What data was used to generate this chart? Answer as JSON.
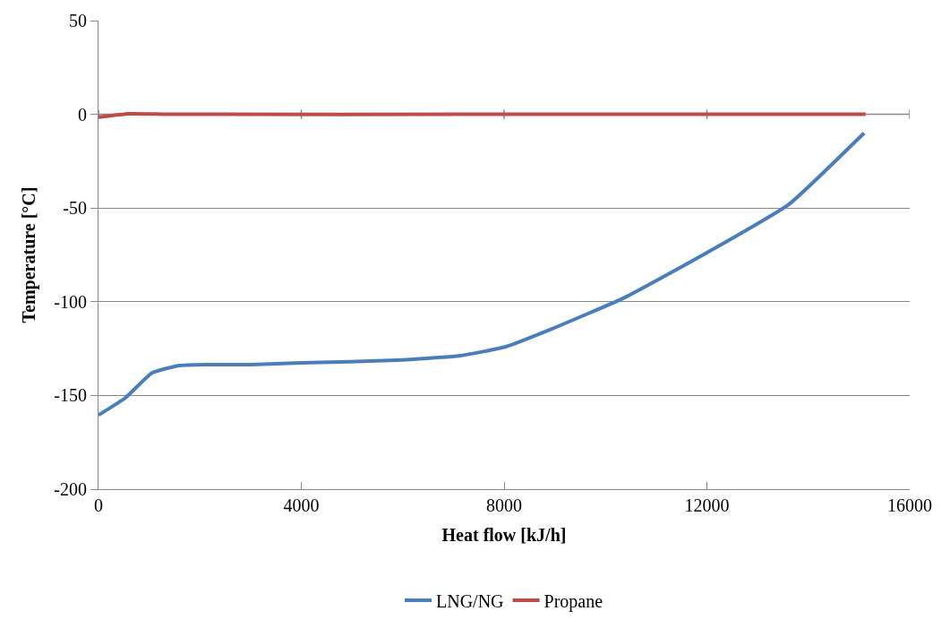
{
  "chart_data": {
    "type": "line",
    "xlabel": "Heat flow [kJ/h]",
    "ylabel": "Temperature [°C]",
    "xlim": [
      0,
      16000
    ],
    "xticks": [
      0,
      4000,
      8000,
      12000,
      16000
    ],
    "ylim": [
      -200,
      50
    ],
    "yticks": [
      -200,
      -150,
      -100,
      -50,
      0,
      50
    ],
    "grid": "y",
    "legend": "bottom",
    "series": [
      {
        "name": "LNG/NG",
        "color": "#4a7ebb",
        "x": [
          0,
          520,
          1055,
          1590,
          2130,
          3000,
          4000,
          5890,
          7140,
          8030,
          8930,
          10360,
          11970,
          13610,
          15100
        ],
        "values": [
          -160.5,
          -151.5,
          -138,
          -134,
          -133.5,
          -133.5,
          -132.6,
          -131.2,
          -128.8,
          -124,
          -114.6,
          -98,
          -74.3,
          -48.2,
          -10
        ]
      },
      {
        "name": "Propane",
        "color": "#be4b48",
        "x": [
          15130,
          8000,
          1400,
          600,
          0
        ],
        "values": [
          0,
          0,
          0,
          0.3,
          -1.5
        ]
      }
    ]
  }
}
